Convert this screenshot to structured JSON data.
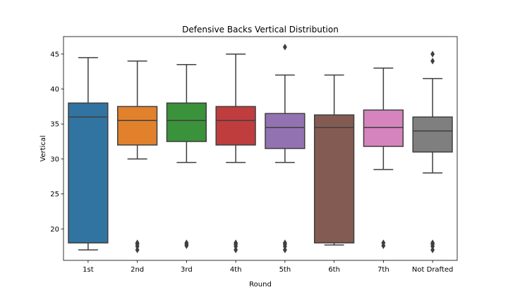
{
  "chart_data": {
    "type": "box",
    "title": "Defensive Backs Vertical Distribution",
    "xlabel": "Round",
    "ylabel": "Vertical",
    "ylim": [
      15.5,
      47.5
    ],
    "yticks": [
      20,
      25,
      30,
      35,
      40,
      45
    ],
    "ytick_labels": [
      "20",
      "25",
      "30",
      "35",
      "40",
      "45"
    ],
    "grid": false,
    "legend": "none",
    "categories": [
      "1st",
      "2nd",
      "3rd",
      "4th",
      "5th",
      "6th",
      "7th",
      "Not Drafted"
    ],
    "colors": [
      "#3274a1",
      "#e1812c",
      "#3a923a",
      "#c03d3e",
      "#9372b2",
      "#845b53",
      "#d684bd",
      "#7f7f7f"
    ],
    "boxes": [
      {
        "whisker_low": 17.0,
        "q1": 18.0,
        "median": 36.0,
        "q3": 38.0,
        "whisker_high": 44.5,
        "outliers": []
      },
      {
        "whisker_low": 30.0,
        "q1": 32.0,
        "median": 35.5,
        "q3": 37.5,
        "whisker_high": 44.0,
        "outliers": [
          17.0,
          17.5,
          17.8,
          18.0
        ]
      },
      {
        "whisker_low": 29.5,
        "q1": 32.5,
        "median": 35.5,
        "q3": 38.0,
        "whisker_high": 43.5,
        "outliers": [
          17.6,
          17.8,
          18.0
        ]
      },
      {
        "whisker_low": 29.5,
        "q1": 32.0,
        "median": 35.5,
        "q3": 37.5,
        "whisker_high": 45.0,
        "outliers": [
          17.0,
          17.5,
          17.8,
          18.0
        ]
      },
      {
        "whisker_low": 29.5,
        "q1": 31.5,
        "median": 34.5,
        "q3": 36.5,
        "whisker_high": 42.0,
        "outliers": [
          17.0,
          17.5,
          17.8,
          18.0,
          46.0
        ]
      },
      {
        "whisker_low": 17.7,
        "q1": 18.0,
        "median": 34.5,
        "q3": 36.3,
        "whisker_high": 42.0,
        "outliers": []
      },
      {
        "whisker_low": 28.5,
        "q1": 31.8,
        "median": 34.5,
        "q3": 37.0,
        "whisker_high": 43.0,
        "outliers": [
          17.6,
          18.0
        ]
      },
      {
        "whisker_low": 28.0,
        "q1": 31.0,
        "median": 34.0,
        "q3": 36.0,
        "whisker_high": 41.5,
        "outliers": [
          17.0,
          17.5,
          17.8,
          18.0,
          44.0,
          45.0
        ]
      }
    ]
  }
}
